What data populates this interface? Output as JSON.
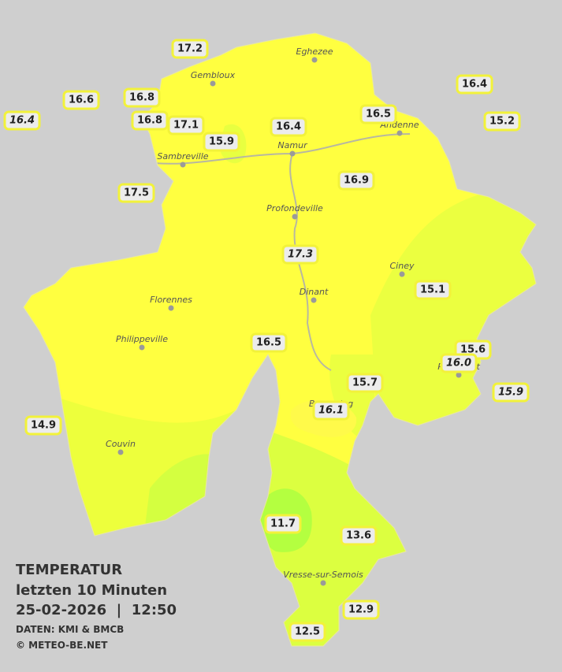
{
  "legend": {
    "title": "TEMPERATUR",
    "period": "letzten 10 Minuten",
    "datetime": "25-02-2026  |  12:50",
    "source": "DATEN: KMI & BMCB",
    "copyright": "© METEO-BE.NET"
  },
  "cities": [
    "Eghezee",
    "Gembloux",
    "Andenne",
    "Namur",
    "Sambreville",
    "Profondeville",
    "Ciney",
    "Florennes",
    "Dinant",
    "Philippeville",
    "Couvin",
    "Vresse-sur-Semois",
    "Rochefort",
    "Beauraing"
  ],
  "stations": [
    {
      "value": "17.2"
    },
    {
      "value": "16.4",
      "italic": true
    },
    {
      "value": "16.6"
    },
    {
      "value": "16.8"
    },
    {
      "value": "16.8"
    },
    {
      "value": "17.1"
    },
    {
      "value": "15.9"
    },
    {
      "value": "16.4"
    },
    {
      "value": "16.5"
    },
    {
      "value": "16.4"
    },
    {
      "value": "15.2"
    },
    {
      "value": "17.5"
    },
    {
      "value": "16.9"
    },
    {
      "value": "17.3",
      "italic": true
    },
    {
      "value": "15.1"
    },
    {
      "value": "16.5"
    },
    {
      "value": "15.6"
    },
    {
      "value": "16.0",
      "italic": true
    },
    {
      "value": "15.9",
      "italic": true
    },
    {
      "value": "15.7"
    },
    {
      "value": "16.1",
      "italic": true
    },
    {
      "value": "14.9"
    },
    {
      "value": "11.7"
    },
    {
      "value": "13.6"
    },
    {
      "value": "12.9"
    },
    {
      "value": "12.5"
    }
  ]
}
